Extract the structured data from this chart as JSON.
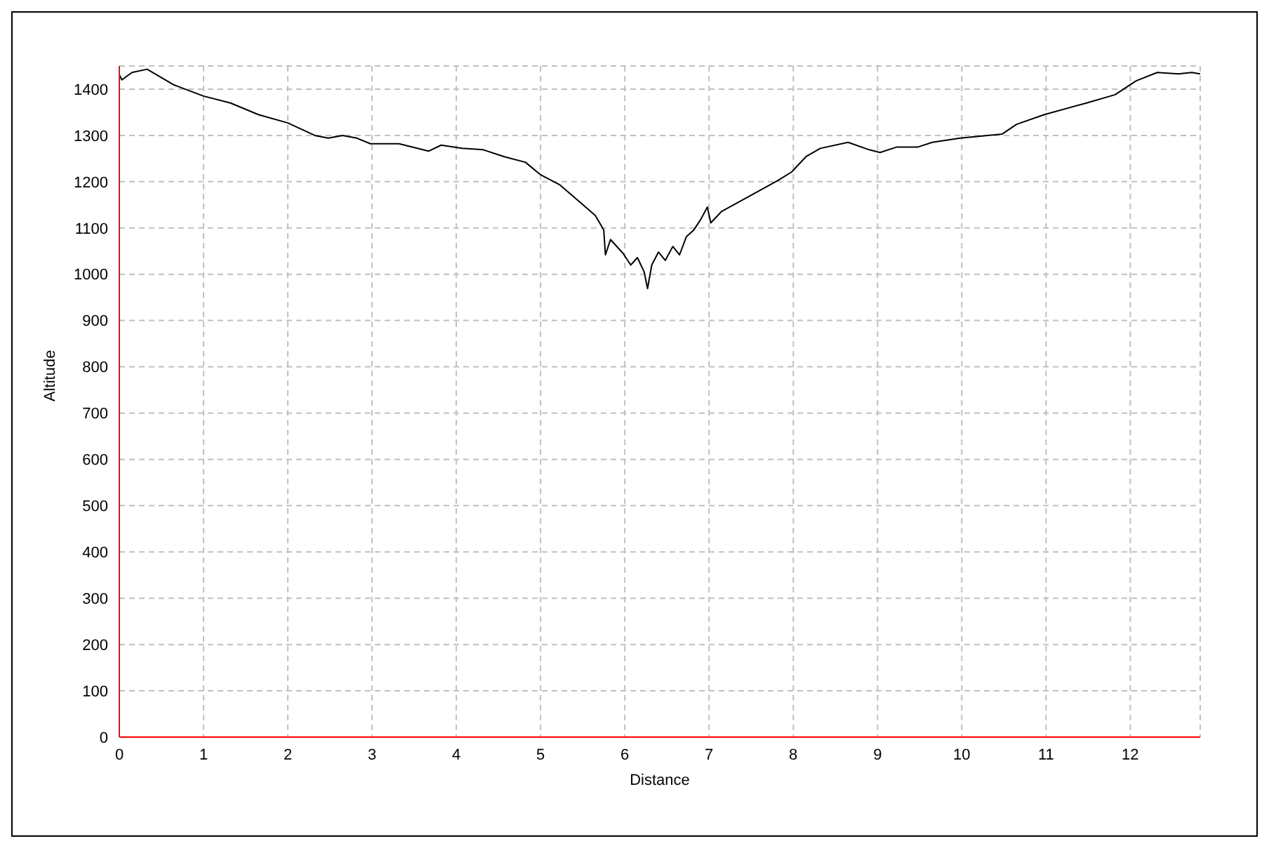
{
  "chart_data": {
    "type": "line",
    "xlabel": "Distance",
    "ylabel": "Altitude",
    "x": [
      0,
      0.03,
      0.15,
      0.33,
      0.65,
      1,
      1.32,
      1.65,
      2,
      2.32,
      2.48,
      2.65,
      2.82,
      2.98,
      3.32,
      3.67,
      3.82,
      4.07,
      4.32,
      4.57,
      4.82,
      5,
      5.23,
      5.48,
      5.65,
      5.75,
      5.77,
      5.83,
      5.98,
      6.07,
      6.15,
      6.23,
      6.27,
      6.32,
      6.4,
      6.48,
      6.57,
      6.65,
      6.73,
      6.82,
      6.9,
      6.98,
      7.02,
      7.15,
      7.48,
      7.82,
      7.98,
      8.15,
      8.32,
      8.65,
      8.9,
      9.03,
      9.23,
      9.48,
      9.65,
      9.98,
      10.48,
      10.65,
      10.98,
      11.48,
      11.82,
      12.07,
      12.32,
      12.57,
      12.73,
      12.83
    ],
    "values": [
      1431,
      1420,
      1436,
      1443,
      1409,
      1385,
      1370,
      1345,
      1327,
      1300,
      1294,
      1300,
      1294,
      1282,
      1282,
      1266,
      1279,
      1272,
      1269,
      1254,
      1242,
      1215,
      1193,
      1154,
      1127,
      1096,
      1042,
      1075,
      1045,
      1020,
      1036,
      1005,
      969,
      1020,
      1048,
      1030,
      1060,
      1042,
      1081,
      1096,
      1118,
      1145,
      1111,
      1136,
      1169,
      1203,
      1221,
      1254,
      1272,
      1285,
      1269,
      1263,
      1275,
      1275,
      1285,
      1294,
      1303,
      1324,
      1345,
      1370,
      1388,
      1418,
      1436,
      1433,
      1436,
      1433
    ],
    "color": "#000000",
    "xlim": [
      0,
      12.83
    ],
    "xticks": [
      0,
      1,
      2,
      3,
      4,
      5,
      6,
      7,
      8,
      9,
      10,
      11,
      12
    ],
    "ylim": [
      0,
      1450
    ],
    "yticks": [
      0,
      100,
      200,
      300,
      400,
      500,
      600,
      700,
      800,
      900,
      1000,
      1100,
      1200,
      1300,
      1400
    ],
    "grid": true,
    "marker": "none",
    "line_style": "solid"
  }
}
